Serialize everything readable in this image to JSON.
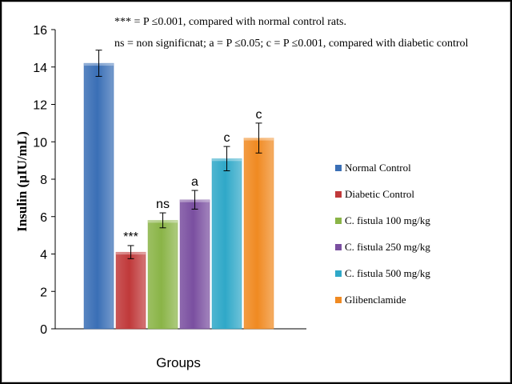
{
  "chart_data": {
    "type": "bar",
    "categories": [
      "Normal Control",
      "Diabetic Control",
      "C. fistula 100 mg/kg",
      "C. fistula 250 mg/kg",
      "C. fistula 500 mg/kg",
      "Glibenclamide"
    ],
    "series": [
      {
        "values": [
          14.2,
          4.1,
          5.8,
          6.9,
          9.1,
          10.2
        ],
        "errors": [
          0.7,
          0.35,
          0.4,
          0.5,
          0.65,
          0.8
        ],
        "significance": [
          "",
          "***",
          "ns",
          "a",
          "c",
          "c"
        ]
      }
    ],
    "colors": [
      "#3a6fb6",
      "#c0393a",
      "#8ab447",
      "#7a4fa0",
      "#2fa8c8",
      "#f08a22"
    ],
    "ylabel": "Insulin (µIU/mL)",
    "xlabel": "Groups",
    "ylim": [
      0,
      16
    ],
    "yticks": [
      "0",
      "2",
      "4",
      "6",
      "8",
      "10",
      "12",
      "14",
      "16"
    ],
    "legend_position": "right",
    "legend": [
      "Normal Control",
      "Diabetic Control",
      "C. fistula 100 mg/kg",
      "C. fistula 250 mg/kg",
      "C. fistula 500 mg/kg",
      "Glibenclamide"
    ],
    "grid": false
  },
  "notes": {
    "line1": "*** = P ≤0.001, compared with normal control rats.",
    "line2": "ns =  non significnat; a = P ≤0.05; c = P ≤0.001, compared with diabetic control"
  }
}
